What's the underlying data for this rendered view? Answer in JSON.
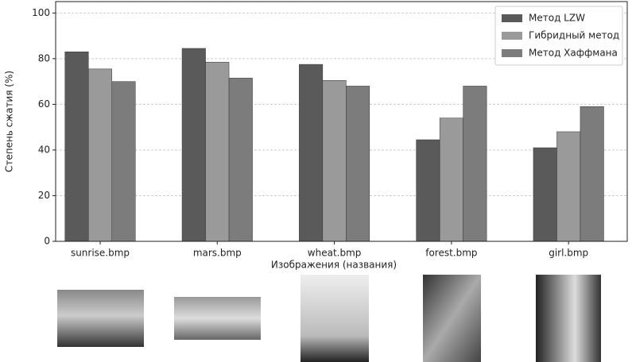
{
  "chart_data": {
    "type": "bar",
    "xlabel": "Изображения (названия)",
    "ylabel": "Степень сжатия (%)",
    "categories": [
      "sunrise.bmp",
      "mars.bmp",
      "wheat.bmp",
      "forest.bmp",
      "girl.bmp"
    ],
    "series": [
      {
        "name": "Метод LZW",
        "color": "#5a5a5a",
        "values": [
          83,
          84.5,
          77.5,
          44.5,
          41
        ]
      },
      {
        "name": "Гибридный метод",
        "color": "#9a9a9a",
        "values": [
          75.5,
          78.5,
          70.5,
          54,
          48
        ]
      },
      {
        "name": "Метод Хаффмана",
        "color": "#7c7c7c",
        "values": [
          70,
          71.5,
          68,
          68,
          59
        ]
      }
    ],
    "ylim": [
      0,
      105
    ],
    "yticks": [
      0,
      20,
      40,
      60,
      80,
      100
    ],
    "grid": true,
    "legend": "upper-right"
  }
}
